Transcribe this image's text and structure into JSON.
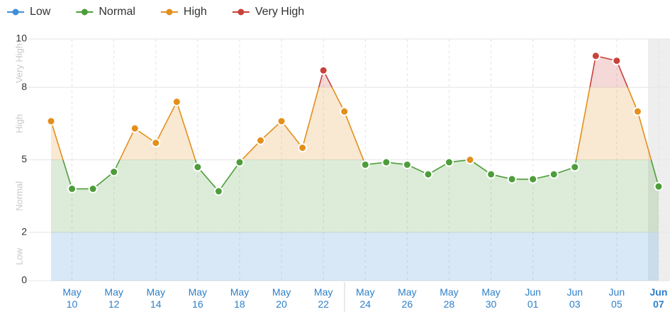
{
  "chart_data": {
    "type": "line",
    "categories": [
      null,
      "May 10",
      null,
      "May 12",
      null,
      "May 14",
      null,
      "May 16",
      null,
      "May 18",
      null,
      "May 20",
      null,
      "May 22",
      null,
      "May 24",
      null,
      "May 26",
      null,
      "May 28",
      null,
      "May 30",
      null,
      "Jun 01",
      null,
      "Jun 03",
      null,
      "Jun 05",
      null,
      "Jun 07"
    ],
    "values": [
      6.6,
      3.8,
      3.8,
      4.5,
      6.3,
      5.7,
      7.4,
      4.7,
      3.7,
      4.9,
      5.8,
      6.6,
      5.5,
      8.7,
      7.0,
      4.8,
      4.9,
      4.8,
      4.4,
      4.9,
      5.0,
      4.4,
      4.2,
      4.2,
      4.4,
      4.7,
      9.3,
      9.1,
      7.0,
      3.9
    ],
    "bands": [
      {
        "name": "Low",
        "color": "#3d8ed6",
        "from": 0,
        "to": 2
      },
      {
        "name": "Normal",
        "color": "#4d9d3a",
        "from": 2,
        "to": 5
      },
      {
        "name": "High",
        "color": "#e28f1c",
        "from": 5,
        "to": 8
      },
      {
        "name": "Very High",
        "color": "#c8413a",
        "from": 8,
        "to": 10
      }
    ],
    "ylim": [
      0,
      10
    ],
    "yticks": [
      0,
      2,
      5,
      8,
      10
    ],
    "grid": true
  }
}
